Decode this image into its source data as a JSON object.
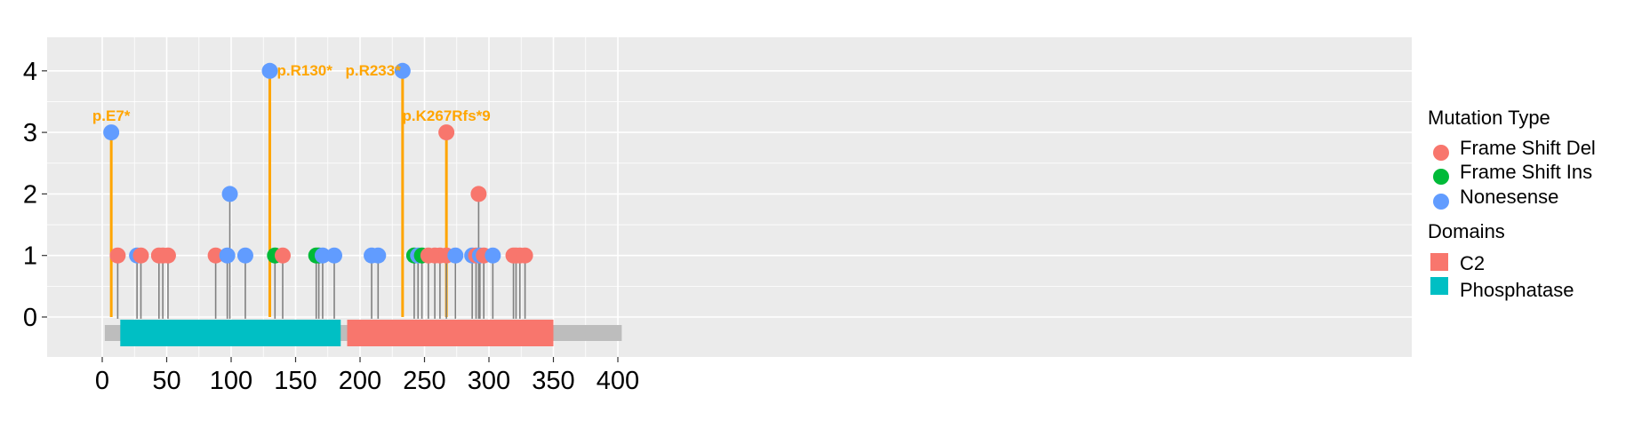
{
  "chart_data": {
    "type": "lollipop",
    "xlim": [
      -13,
      410
    ],
    "ylim": [
      -0.7,
      4.3
    ],
    "x_ticks": [
      0,
      50,
      100,
      150,
      200,
      250,
      300,
      350,
      400
    ],
    "y_ticks": [
      0,
      1,
      2,
      3,
      4
    ],
    "grid": true,
    "protein_length": 403,
    "colors": {
      "Frame Shift Del": "#F8766D",
      "Frame Shift Ins": "#00BA38",
      "Nonesense": "#619CFF",
      "C2": "#F8766D",
      "Phosphatase": "#00BFC4",
      "backbone": "#BDBDBD",
      "highlight": "#FFA500",
      "stem": "#808080",
      "panel": "#EBEBEB"
    },
    "domains": [
      {
        "name": "Phosphatase",
        "start": 14,
        "end": 185
      },
      {
        "name": "C2",
        "start": 190,
        "end": 350
      }
    ],
    "mutations": [
      {
        "x": 7,
        "y": 3,
        "type": "Nonesense",
        "label": "p.E7*"
      },
      {
        "x": 12,
        "y": 1,
        "type": "Frame Shift Del"
      },
      {
        "x": 27,
        "y": 1,
        "type": "Nonesense"
      },
      {
        "x": 30,
        "y": 1,
        "type": "Frame Shift Del"
      },
      {
        "x": 44,
        "y": 1,
        "type": "Frame Shift Del"
      },
      {
        "x": 47,
        "y": 1,
        "type": "Frame Shift Del"
      },
      {
        "x": 51,
        "y": 1,
        "type": "Frame Shift Del"
      },
      {
        "x": 88,
        "y": 1,
        "type": "Frame Shift Del"
      },
      {
        "x": 97,
        "y": 1,
        "type": "Nonesense"
      },
      {
        "x": 99,
        "y": 2,
        "type": "Nonesense"
      },
      {
        "x": 111,
        "y": 1,
        "type": "Nonesense"
      },
      {
        "x": 130,
        "y": 4,
        "type": "Nonesense",
        "label": "p.R130*"
      },
      {
        "x": 134,
        "y": 1,
        "type": "Frame Shift Ins"
      },
      {
        "x": 140,
        "y": 1,
        "type": "Frame Shift Del"
      },
      {
        "x": 166,
        "y": 1,
        "type": "Frame Shift Ins"
      },
      {
        "x": 168,
        "y": 1,
        "type": "Frame Shift Ins"
      },
      {
        "x": 171,
        "y": 1,
        "type": "Nonesense"
      },
      {
        "x": 180,
        "y": 1,
        "type": "Nonesense"
      },
      {
        "x": 209,
        "y": 1,
        "type": "Nonesense"
      },
      {
        "x": 214,
        "y": 1,
        "type": "Nonesense"
      },
      {
        "x": 233,
        "y": 4,
        "type": "Nonesense",
        "label": "p.R233*"
      },
      {
        "x": 242,
        "y": 1,
        "type": "Frame Shift Ins"
      },
      {
        "x": 245,
        "y": 1,
        "type": "Nonesense"
      },
      {
        "x": 248,
        "y": 1,
        "type": "Frame Shift Ins"
      },
      {
        "x": 253,
        "y": 1,
        "type": "Frame Shift Del"
      },
      {
        "x": 258,
        "y": 1,
        "type": "Frame Shift Del"
      },
      {
        "x": 262,
        "y": 1,
        "type": "Frame Shift Del"
      },
      {
        "x": 267,
        "y": 3,
        "type": "Frame Shift Del",
        "label": "p.K267Rfs*9"
      },
      {
        "x": 267,
        "y": 1,
        "type": "Frame Shift Del"
      },
      {
        "x": 274,
        "y": 1,
        "type": "Nonesense"
      },
      {
        "x": 287,
        "y": 1,
        "type": "Nonesense"
      },
      {
        "x": 290,
        "y": 1,
        "type": "Frame Shift Del"
      },
      {
        "x": 292,
        "y": 2,
        "type": "Frame Shift Del"
      },
      {
        "x": 293,
        "y": 1,
        "type": "Nonesense"
      },
      {
        "x": 296,
        "y": 1,
        "type": "Frame Shift Del"
      },
      {
        "x": 303,
        "y": 1,
        "type": "Nonesense"
      },
      {
        "x": 319,
        "y": 1,
        "type": "Frame Shift Del"
      },
      {
        "x": 321,
        "y": 1,
        "type": "Frame Shift Del"
      },
      {
        "x": 324,
        "y": 1,
        "type": "Frame Shift Del"
      },
      {
        "x": 328,
        "y": 1,
        "type": "Frame Shift Del"
      }
    ],
    "legend": {
      "placement": "right",
      "mutation_title": "Mutation Type",
      "mutation_items": [
        "Frame Shift Del",
        "Frame Shift Ins",
        "Nonesense"
      ],
      "domain_title": "Domains",
      "domain_items": [
        "C2",
        "Phosphatase"
      ]
    }
  }
}
